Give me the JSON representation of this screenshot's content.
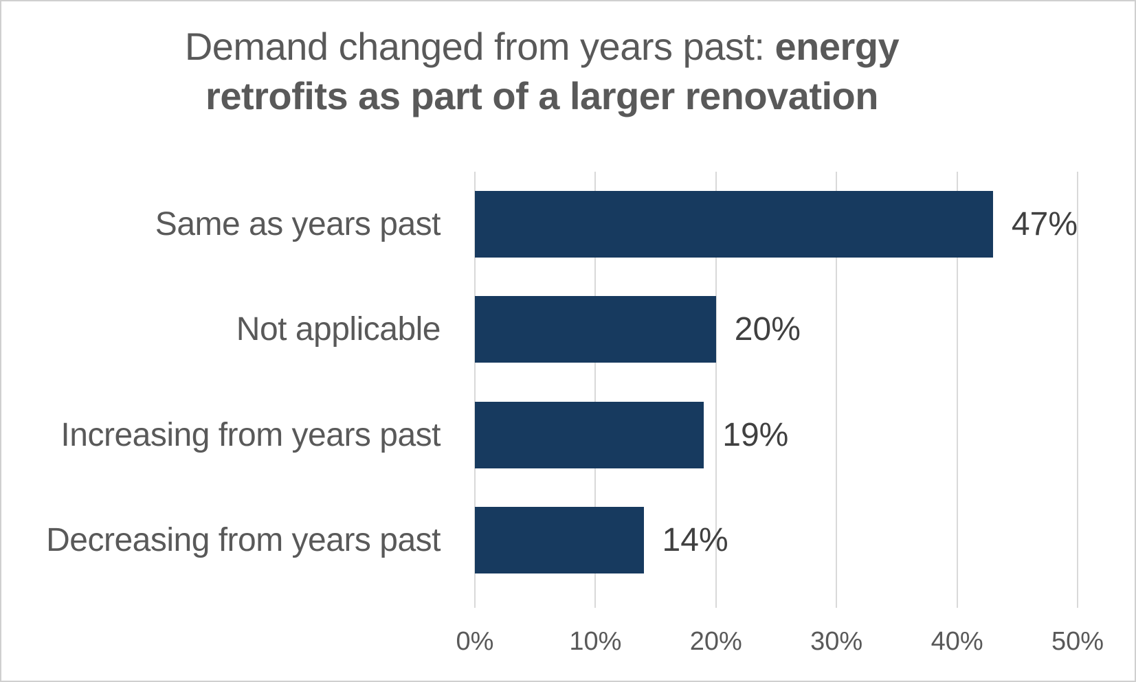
{
  "title": {
    "line1_normal": "Demand changed from years past: ",
    "line1_bold": "energy",
    "line2_bold": "retrofits as part of a larger renovation"
  },
  "chart_data": {
    "type": "bar",
    "orientation": "horizontal",
    "title": "Demand changed from years past: energy retrofits as part of a larger renovation",
    "categories": [
      "Same as years past",
      "Not applicable",
      "Increasing from years past",
      "Decreasing from years past"
    ],
    "values": [
      47,
      20,
      19,
      14
    ],
    "value_labels": [
      "47%",
      "20%",
      "19%",
      "14%"
    ],
    "x_ticks": [
      0,
      10,
      20,
      30,
      40,
      50
    ],
    "x_tick_labels": [
      "0%",
      "10%",
      "20%",
      "30%",
      "40%",
      "50%"
    ],
    "xlim": [
      0,
      50
    ],
    "xlabel": "",
    "ylabel": "",
    "grid": true,
    "legend": "none",
    "colors": {
      "bar": "#173a5f",
      "title_text": "#595959",
      "category_text": "#595959",
      "value_label_text": "#404040",
      "tick_text": "#595959",
      "gridline": "#d9d9d9",
      "background": "#ffffff",
      "border": "#cfcfcf"
    }
  }
}
